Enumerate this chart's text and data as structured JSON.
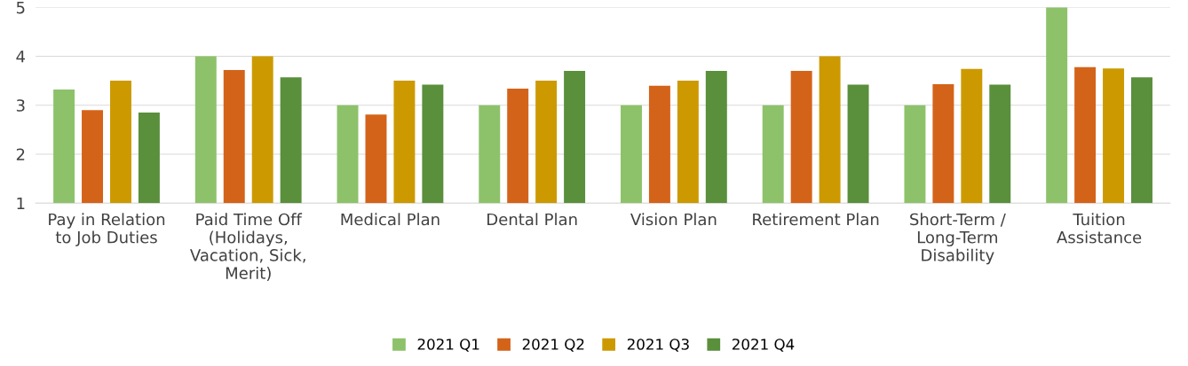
{
  "chart_data": {
    "type": "bar",
    "categories": [
      "Pay in Relation\nto Job Duties",
      "Paid Time Off\n(Holidays,\nVacation, Sick,\nMerit)",
      "Medical Plan",
      "Dental Plan",
      "Vision Plan",
      "Retirement Plan",
      "Short-Term /\nLong-Term\nDisability",
      "Tuition\nAssistance"
    ],
    "series": [
      {
        "name": "2021 Q1",
        "color": "#8dc26a",
        "values": [
          3.32,
          4.0,
          3.0,
          3.0,
          3.0,
          3.0,
          3.0,
          5.0
        ]
      },
      {
        "name": "2021 Q2",
        "color": "#d4631a",
        "values": [
          2.9,
          3.72,
          2.81,
          3.34,
          3.4,
          3.7,
          3.43,
          3.78
        ]
      },
      {
        "name": "2021 Q3",
        "color": "#cc9a00",
        "values": [
          3.5,
          4.0,
          3.5,
          3.5,
          3.5,
          4.0,
          3.74,
          3.75
        ]
      },
      {
        "name": "2021 Q4",
        "color": "#5a8f3c",
        "values": [
          2.85,
          3.57,
          3.42,
          3.7,
          3.7,
          3.42,
          3.42,
          3.57
        ]
      }
    ],
    "ylim": [
      1,
      5
    ],
    "yticks": [
      1,
      2,
      3,
      4,
      5
    ],
    "grid": "y",
    "legend": "bottom"
  }
}
